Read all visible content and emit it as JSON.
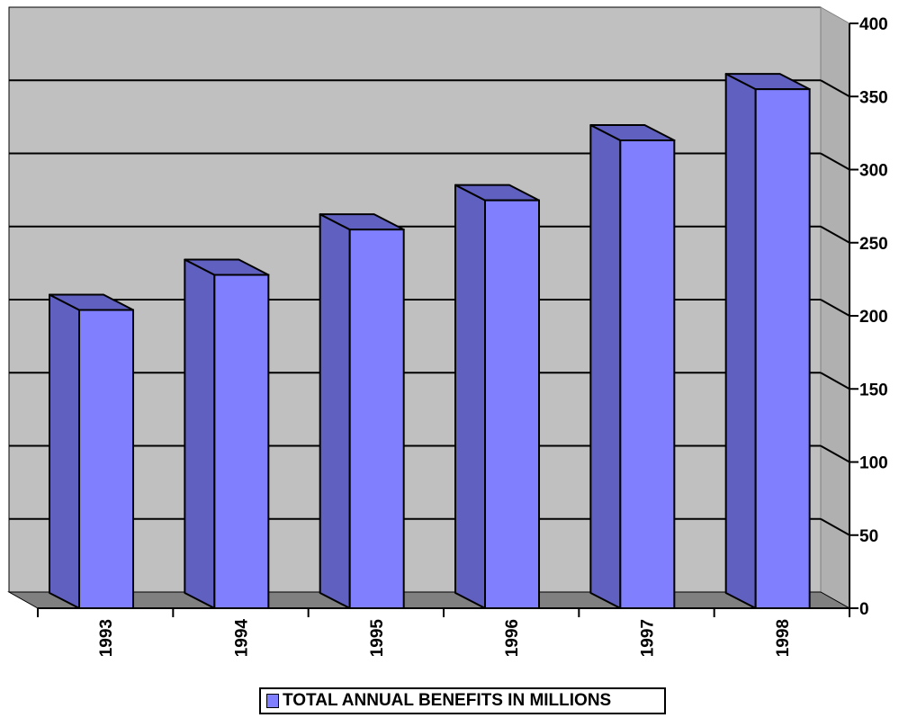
{
  "chart_data": {
    "type": "bar",
    "categories": [
      "1993",
      "1994",
      "1995",
      "1996",
      "1997",
      "1998"
    ],
    "series": [
      {
        "name": "TOTAL ANNUAL BENEFITS IN MILLIONS",
        "values": [
          204,
          228,
          259,
          279,
          320,
          355
        ]
      }
    ],
    "ylim": [
      0,
      400
    ],
    "y_ticks": [
      "0",
      "50",
      "100",
      "150",
      "200",
      "250",
      "300",
      "350",
      "400"
    ],
    "grid": true,
    "legend_position": "bottom",
    "style_3d": true,
    "colors": {
      "bar_front": "#8080ff",
      "bar_side": "#6060c0",
      "wall": "#c0c0c0",
      "floor": "#808080"
    }
  }
}
